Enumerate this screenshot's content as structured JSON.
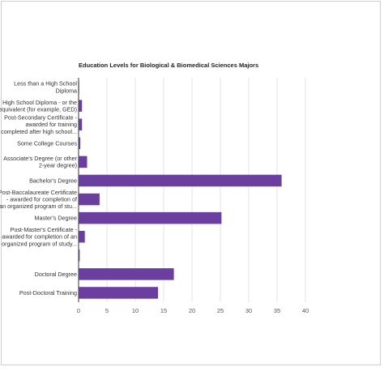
{
  "chart_data": {
    "type": "bar",
    "orientation": "horizontal",
    "title": "Education Levels for Biological & Biomedical Sciences Majors",
    "xlabel": "",
    "ylabel": "",
    "xlim": [
      0,
      40
    ],
    "x_ticks": [
      "0",
      "5",
      "10",
      "15",
      "20",
      "25",
      "30",
      "35",
      "40"
    ],
    "grid": true,
    "legend": "none",
    "bar_color": "#6b3fa0",
    "categories": [
      [
        "Less than a High School",
        "Diploma"
      ],
      [
        "High School Diploma - or the",
        "equivalent (for example, GED)"
      ],
      [
        "Post-Secondary Certificate -",
        "awarded for training",
        "completed after high school..."
      ],
      [
        "Some College Courses"
      ],
      [
        "Associate's Degree (or other",
        "2-year degree)"
      ],
      [
        "Bachelor's Degree"
      ],
      [
        "Post-Baccalaureate Certificate",
        "- awarded for completion of",
        "an organized program of stu..."
      ],
      [
        "Master's Degree"
      ],
      [
        "Post-Master's Certificate -",
        "awarded for completion of an",
        "organized program of study..."
      ],
      [
        ""
      ],
      [
        "Doctoral Degree"
      ],
      [
        "Post-Doctoral Training"
      ]
    ],
    "values": [
      0.1,
      0.6,
      0.6,
      0.3,
      1.5,
      35.8,
      3.7,
      25.2,
      1.1,
      0.2,
      16.8,
      14.0
    ]
  }
}
